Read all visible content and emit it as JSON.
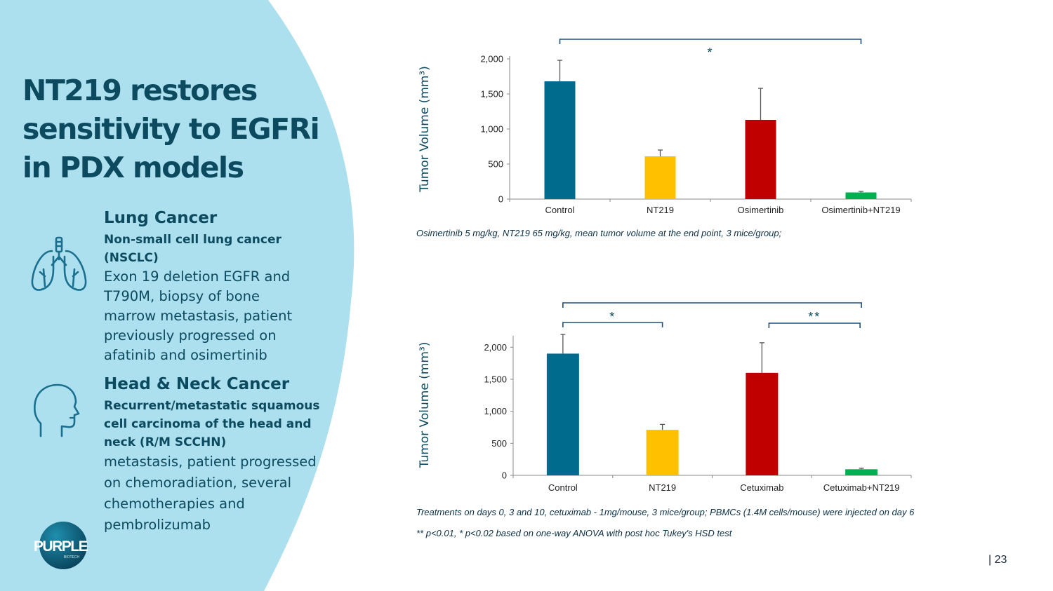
{
  "title": {
    "lines": [
      "NT219 restores",
      "sensitivity to EGFRi",
      "in PDX models"
    ]
  },
  "sections": {
    "lung": {
      "icon": "lungs-icon",
      "heading": "Lung Cancer",
      "subheading": "Non-small cell lung cancer (NSCLC)",
      "body_lines": [
        "Exon 19 deletion EGFR and",
        "T790M, biopsy of bone",
        "marrow metastasis, patient",
        "previously progressed on",
        "afatinib and osimertinib"
      ]
    },
    "head_neck": {
      "icon": "head-profile-icon",
      "heading": "Head & Neck Cancer",
      "subheading_lines": [
        "Recurrent/metastatic squamous",
        "cell carcinoma of the head and",
        "neck (R/M SCCHN)"
      ],
      "body_lines": [
        "metastasis, patient progressed",
        "on chemoradiation, several",
        "chemotherapies and",
        "pembrolizumab"
      ]
    }
  },
  "logo": {
    "text": "PURPLE",
    "tagline": "BIOTECH"
  },
  "colors": {
    "panel": "#ade0ef",
    "title": "#0c4a5f",
    "control": "#006b8c",
    "nt219": "#ffc000",
    "combo_single": "#c00000",
    "combo": "#00b050",
    "bracket": "#1f4e79"
  },
  "chart_data": [
    {
      "type": "bar",
      "categories": [
        "Control",
        "NT219",
        "Osimertinib",
        "Osimertinib+NT219"
      ],
      "values": [
        1680,
        610,
        1130,
        95
      ],
      "errors": [
        300,
        90,
        450,
        15
      ],
      "ylabel": "Tumor Volume (mm³)",
      "ylim": [
        0,
        2000
      ],
      "yticks": [
        "0",
        "500",
        "1,000",
        "1,500",
        "2,000"
      ],
      "significance": [
        {
          "from": 0,
          "to": 3,
          "label": "*"
        }
      ],
      "note": "Osimertinib 5 mg/kg, NT219 65 mg/kg, mean tumor volume at the end point, 3 mice/group;"
    },
    {
      "type": "bar",
      "categories": [
        "Control",
        "NT219",
        "Cetuximab",
        "Cetuximab+NT219"
      ],
      "values": [
        1900,
        710,
        1600,
        95
      ],
      "errors": [
        300,
        85,
        470,
        15
      ],
      "ylabel": "Tumor Volume (mm³)",
      "ylim": [
        0,
        2200
      ],
      "yticks": [
        "0",
        "500",
        "1,000",
        "1,500",
        "2,000"
      ],
      "significance": [
        {
          "from": 0,
          "to": 3,
          "label": ""
        },
        {
          "from": 0,
          "to": 1,
          "label": "*"
        },
        {
          "from": 2,
          "to": 3,
          "label": "**"
        }
      ],
      "notes": [
        "Treatments on days 0, 3 and 10, cetuximab - 1mg/mouse, 3 mice/group; PBMCs (1.4M cells/mouse) were injected on day 6",
        "** p<0.01, * p<0.02 based on one-way ANOVA with post hoc Tukey's HSD test"
      ]
    }
  ],
  "page_number": "| 23"
}
